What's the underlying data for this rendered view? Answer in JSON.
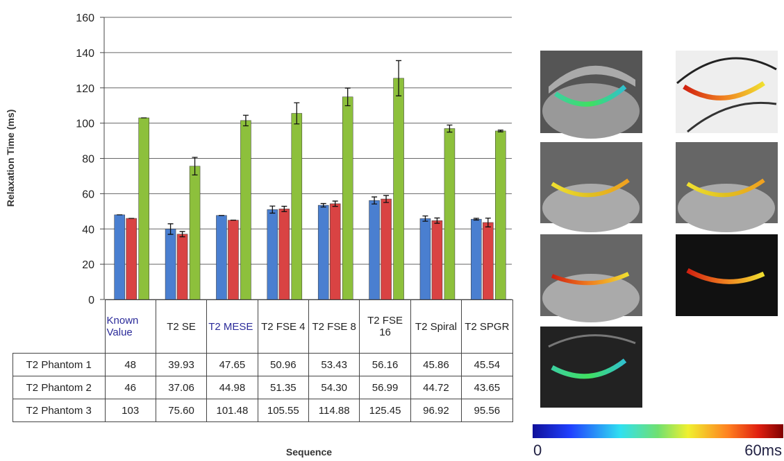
{
  "chart_data": {
    "type": "bar",
    "y_label": "Relaxation Time (ms)",
    "x_label": "Sequence",
    "categories": [
      "Known Value",
      "T2 SE",
      "T2 MESE",
      "T2 FSE 4",
      "T2 FSE 8",
      "T2 FSE 16",
      "T2 Spiral",
      "T2 SPGR"
    ],
    "series": [
      {
        "name": "T2 Phantom 1",
        "color": "#4a7fd0",
        "values": [
          48,
          39.93,
          47.65,
          50.96,
          53.43,
          56.16,
          45.86,
          45.54
        ],
        "value_labels": [
          "48",
          "39.93",
          "47.65",
          "50.96",
          "53.43",
          "56.16",
          "45.86",
          "45.54"
        ],
        "errors": [
          0,
          3,
          0,
          2,
          1,
          2,
          1.5,
          0.5
        ]
      },
      {
        "name": "T2 Phantom 2",
        "color": "#d94343",
        "values": [
          46,
          37.06,
          44.98,
          51.35,
          54.3,
          56.99,
          44.72,
          43.65
        ],
        "value_labels": [
          "46",
          "37.06",
          "44.98",
          "51.35",
          "54.30",
          "56.99",
          "44.72",
          "43.65"
        ],
        "errors": [
          0,
          1.5,
          0,
          1.5,
          1.5,
          2,
          1.5,
          2.5
        ]
      },
      {
        "name": "T2 Phantom 3",
        "color": "#8dc03c",
        "values": [
          103,
          75.6,
          101.48,
          105.55,
          114.88,
          125.45,
          96.92,
          95.56
        ],
        "value_labels": [
          "103",
          "75.60",
          "101.48",
          "105.55",
          "114.88",
          "125.45",
          "96.92",
          "95.56"
        ],
        "errors": [
          0,
          5,
          3,
          6,
          5,
          10,
          2,
          0.5
        ]
      }
    ],
    "ylim": [
      0,
      160
    ],
    "yticks": [
      0,
      20,
      40,
      60,
      80,
      100,
      120,
      140,
      160
    ],
    "grid": true
  },
  "colorbar": {
    "min_label": "0",
    "max_label": "60ms"
  }
}
